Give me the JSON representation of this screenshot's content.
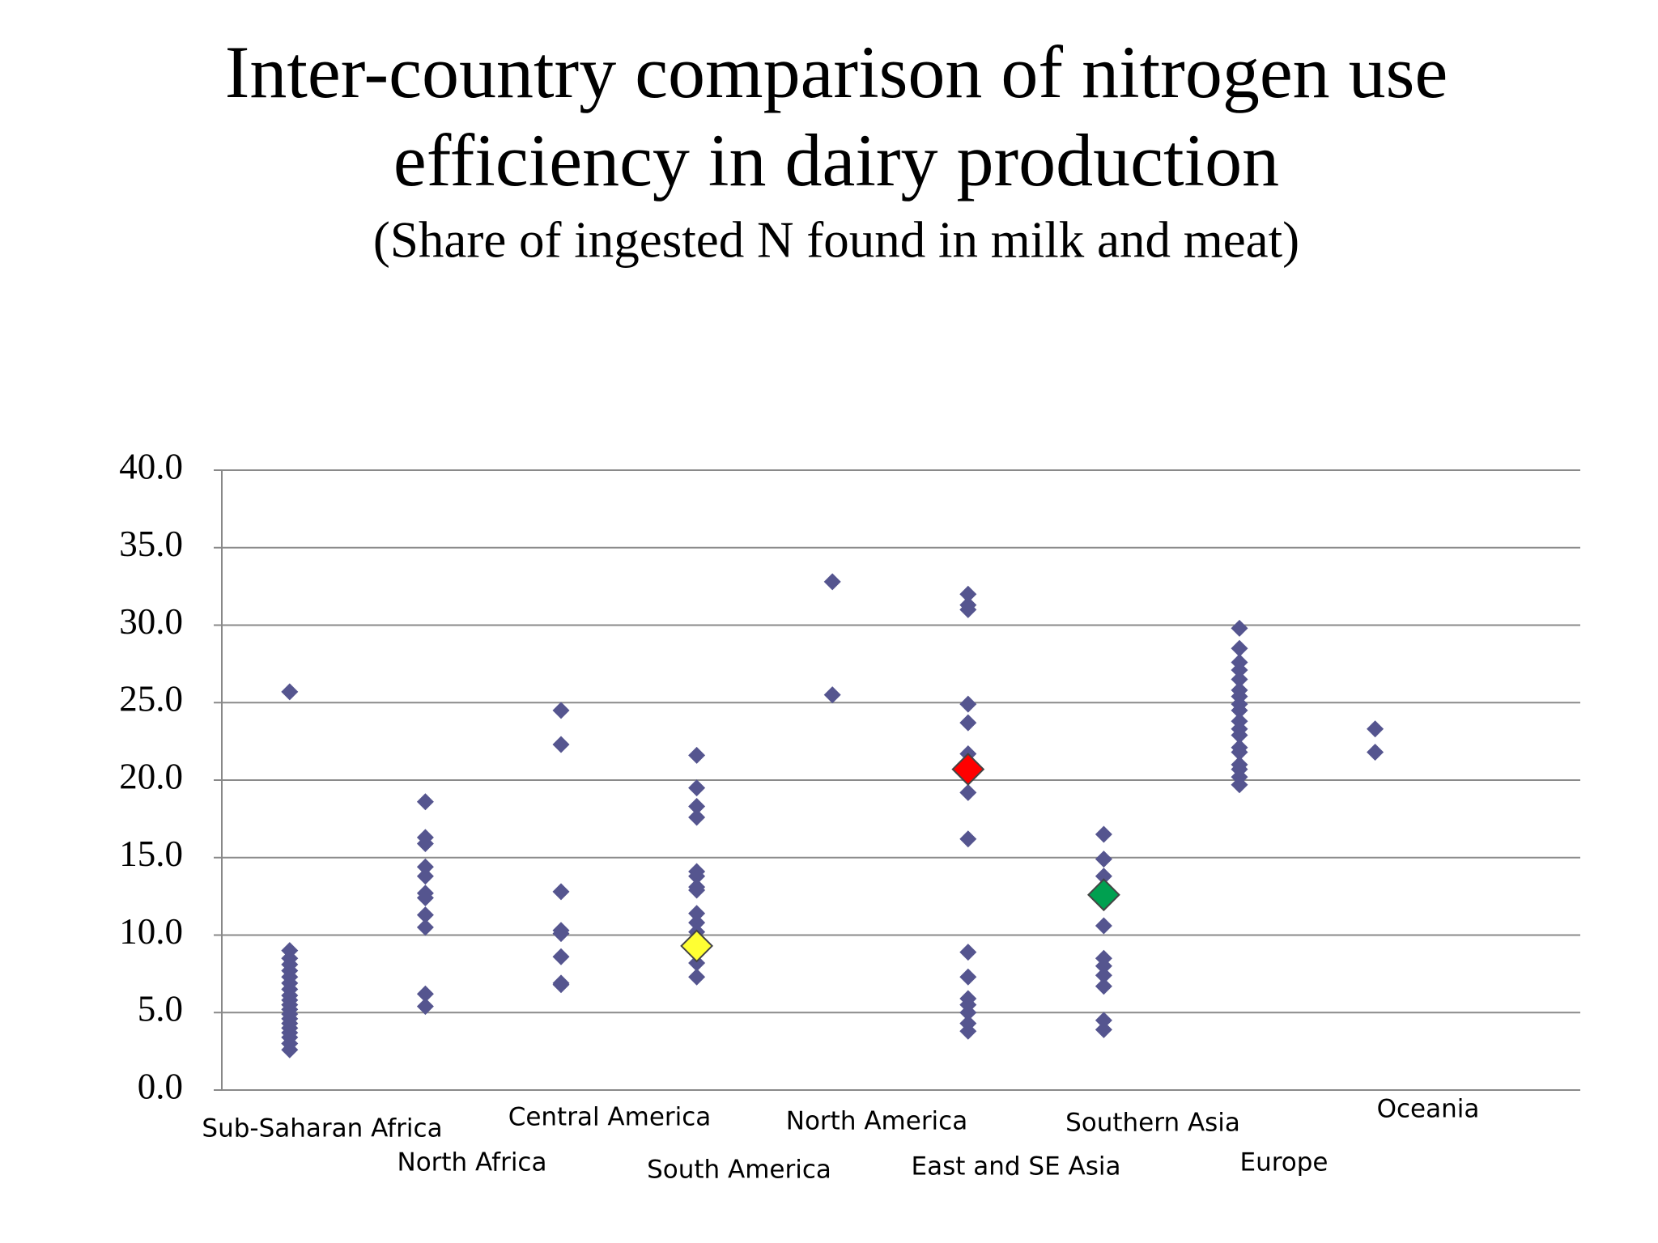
{
  "chart_data": {
    "type": "strip",
    "title": [
      "Inter-country comparison of nitrogen use",
      "efficiency in dairy production"
    ],
    "subtitle": "(Share of ingested N found in milk and meat)",
    "categories": [
      "Sub-Saharan Africa",
      "North Africa",
      "Central America",
      "South America",
      "North America",
      "East and SE Asia",
      "Southern Asia",
      "Europe",
      "Oceania"
    ],
    "series": [
      {
        "color": "#55558f",
        "values": [
          [
            25.7,
            9.0,
            8.5,
            8.1,
            7.7,
            7.3,
            6.9,
            6.5,
            6.1,
            5.8,
            5.5,
            5.2,
            4.9,
            4.6,
            4.3,
            4.0,
            3.7,
            3.4,
            3.0,
            2.6
          ],
          [
            18.6,
            16.3,
            15.9,
            14.4,
            13.8,
            12.7,
            12.4,
            11.3,
            10.5,
            6.2,
            5.4
          ],
          [
            24.5,
            22.3,
            12.8,
            10.3,
            10.1,
            8.6,
            6.9,
            6.8
          ],
          [
            21.6,
            19.5,
            18.3,
            17.6,
            14.1,
            13.8,
            13.1,
            12.9,
            11.4,
            10.8,
            10.2,
            9.7,
            8.9,
            8.2,
            7.3
          ],
          [
            32.8,
            25.5
          ],
          [
            32.0,
            31.3,
            31.0,
            24.9,
            23.7,
            21.7,
            19.2,
            16.2,
            8.9,
            7.3,
            5.9,
            5.5,
            5.0,
            4.3,
            3.8
          ],
          [
            16.5,
            14.9,
            13.8,
            12.2,
            10.6,
            8.5,
            8.0,
            7.4,
            6.7,
            4.5,
            3.9
          ],
          [
            29.8,
            28.5,
            27.6,
            27.1,
            26.5,
            25.8,
            25.4,
            24.9,
            24.5,
            23.8,
            23.3,
            22.9,
            22.1,
            21.8,
            21.0,
            20.7,
            20.2,
            19.7
          ],
          [
            23.3,
            21.8
          ]
        ]
      },
      {
        "color": "#ffff33",
        "values": [
          [],
          [],
          [],
          [
            9.3
          ],
          [],
          [],
          [],
          [],
          []
        ]
      },
      {
        "color": "#ff0000",
        "values": [
          [],
          [],
          [],
          [],
          [],
          [
            20.7
          ],
          [],
          [],
          []
        ]
      },
      {
        "color": "#00a050",
        "values": [
          [],
          [],
          [],
          [],
          [],
          [],
          [
            12.6
          ],
          [],
          []
        ]
      }
    ],
    "ylim": [
      0,
      40
    ],
    "yticks": [
      {
        "value": 0,
        "label": "0.0"
      },
      {
        "value": 5,
        "label": "5.0"
      },
      {
        "value": 10,
        "label": "10.0"
      },
      {
        "value": 15,
        "label": "15.0"
      },
      {
        "value": 20,
        "label": "20.0"
      },
      {
        "value": 25,
        "label": "25.0"
      },
      {
        "value": 30,
        "label": "30.0"
      },
      {
        "value": 35,
        "label": "35.0"
      },
      {
        "value": 40,
        "label": "40.0"
      }
    ],
    "grid": true
  }
}
